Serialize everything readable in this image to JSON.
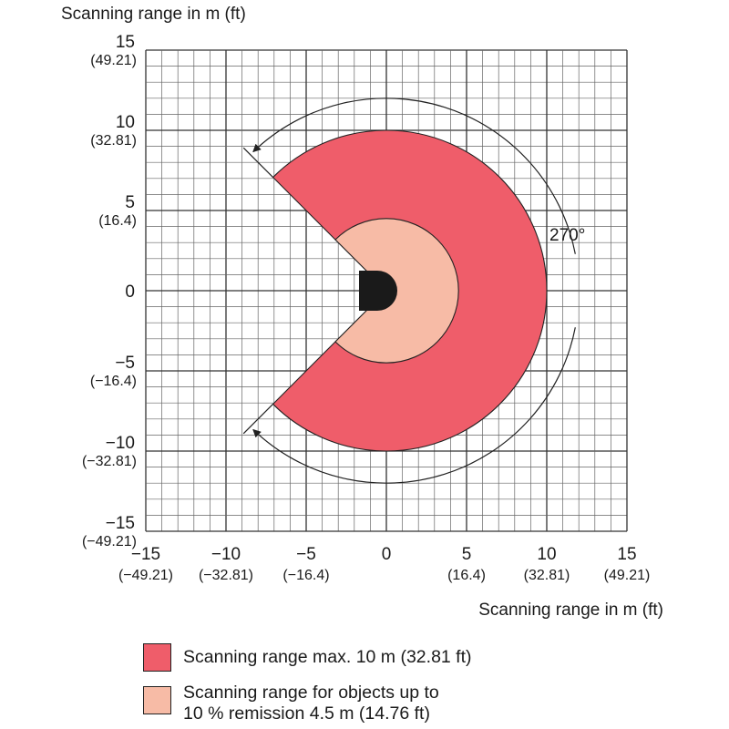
{
  "y_axis_title": "Scanning range in m (ft)",
  "x_axis_title": "Scanning range in m (ft)",
  "angle_label": "270°",
  "y_ticks": [
    {
      "value": 15,
      "m": "15",
      "ft": "(49.21)"
    },
    {
      "value": 10,
      "m": "10",
      "ft": "(32.81)"
    },
    {
      "value": 5,
      "m": "5",
      "ft": "(16.4)"
    },
    {
      "value": 0,
      "m": "0",
      "ft": ""
    },
    {
      "value": -5,
      "m": "−5",
      "ft": "(−16.4)"
    },
    {
      "value": -10,
      "m": "−10",
      "ft": "(−32.81)"
    },
    {
      "value": -15,
      "m": "−15",
      "ft": "(−49.21)"
    }
  ],
  "x_ticks": [
    {
      "value": -15,
      "m": "−15",
      "ft": "(−49.21)"
    },
    {
      "value": -10,
      "m": "−10",
      "ft": "(−32.81)"
    },
    {
      "value": -5,
      "m": "−5",
      "ft": "(−16.4)"
    },
    {
      "value": 0,
      "m": "0",
      "ft": ""
    },
    {
      "value": 5,
      "m": "5",
      "ft": "(16.4)"
    },
    {
      "value": 10,
      "m": "10",
      "ft": "(32.81)"
    },
    {
      "value": 15,
      "m": "15",
      "ft": "(49.21)"
    }
  ],
  "zones": {
    "max_range_m": 10,
    "remission_range_m": 4.5,
    "aperture_deg": 270
  },
  "legend": [
    {
      "label": "Scanning range max. 10 m (32.81 ft)",
      "color": "#ef5d6a"
    },
    {
      "label": "Scanning range for objects up to\n10 % remission 4.5 m (14.76 ft)",
      "color": "#f7bba6"
    }
  ]
}
